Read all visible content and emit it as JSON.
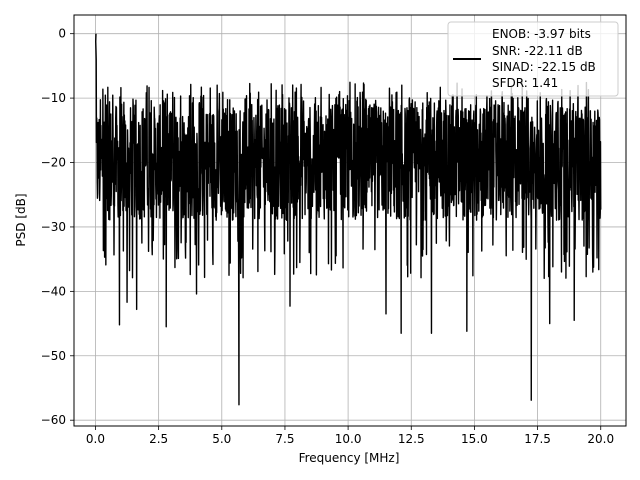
{
  "chart_data": {
    "type": "line",
    "title": "",
    "xlabel": "Frequency [MHz]",
    "ylabel": "PSD [dB]",
    "xlim": [
      -0.85,
      21.0
    ],
    "ylim": [
      -60.9,
      2.9
    ],
    "xticks": [
      0.0,
      2.5,
      5.0,
      7.5,
      10.0,
      12.5,
      15.0,
      17.5,
      20.0
    ],
    "xtick_labels": [
      "0.0",
      "2.5",
      "5.0",
      "7.5",
      "10.0",
      "12.5",
      "15.0",
      "17.5",
      "20.0"
    ],
    "yticks": [
      0,
      -10,
      -20,
      -30,
      -40,
      -50,
      -60
    ],
    "ytick_labels": [
      "0",
      "−10",
      "−20",
      "−30",
      "−40",
      "−50",
      "−60"
    ],
    "grid": true,
    "legend_position": "top-right",
    "series": [
      {
        "name": "ENOB: -3.97 bits\nSNR: -22.11 dB\nSINAD: -22.15 dB\nSFDR: 1.41",
        "color": "#000000",
        "x_range": [
          0.0,
          20.0
        ],
        "num_points": 2048,
        "baseline_db": -20.0,
        "upper_envelope_db": -8.0,
        "peak": {
          "x": 0.02,
          "y": 0.0
        },
        "notable_dips": [
          {
            "x": 0.95,
            "y": -45.2
          },
          {
            "x": 1.25,
            "y": -41.7
          },
          {
            "x": 1.63,
            "y": -42.8
          },
          {
            "x": 2.8,
            "y": -45.5
          },
          {
            "x": 4.0,
            "y": -40.4
          },
          {
            "x": 5.68,
            "y": -57.6
          },
          {
            "x": 7.7,
            "y": -42.3
          },
          {
            "x": 11.5,
            "y": -43.5
          },
          {
            "x": 12.1,
            "y": -46.5
          },
          {
            "x": 13.3,
            "y": -46.5
          },
          {
            "x": 14.7,
            "y": -46.2
          },
          {
            "x": 17.25,
            "y": -56.9
          },
          {
            "x": 17.98,
            "y": -45.0
          },
          {
            "x": 18.95,
            "y": -44.5
          }
        ]
      }
    ]
  },
  "legend": {
    "lines": [
      "ENOB: -3.97 bits",
      "SNR: -22.11 dB",
      "SINAD: -22.15 dB",
      "SFDR: 1.41"
    ]
  },
  "colors": {
    "line": "#000000",
    "grid": "#b0b0b0",
    "legend_border": "#cccccc"
  }
}
